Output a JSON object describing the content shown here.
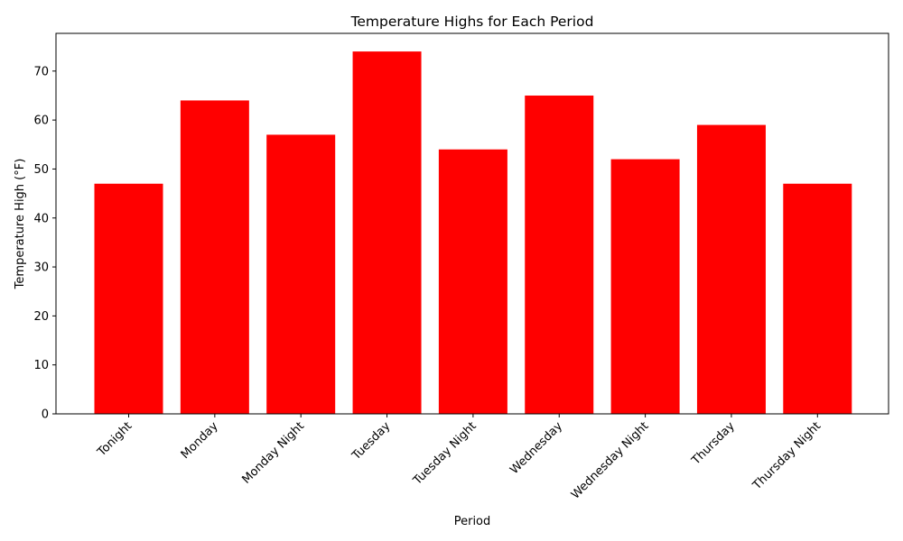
{
  "chart_data": {
    "type": "bar",
    "title": "Temperature Highs for Each Period",
    "xlabel": "Period",
    "ylabel": "Temperature High (°F)",
    "categories": [
      "Tonight",
      "Monday",
      "Monday Night",
      "Tuesday",
      "Tuesday Night",
      "Wednesday",
      "Wednesday Night",
      "Thursday",
      "Thursday Night"
    ],
    "values": [
      47,
      64,
      57,
      74,
      54,
      65,
      52,
      59,
      47
    ],
    "ylim": [
      0,
      77.7
    ],
    "yticks": [
      0,
      10,
      20,
      30,
      40,
      50,
      60,
      70
    ],
    "bar_color": "#ff0000",
    "grid": false,
    "legend": "none"
  }
}
